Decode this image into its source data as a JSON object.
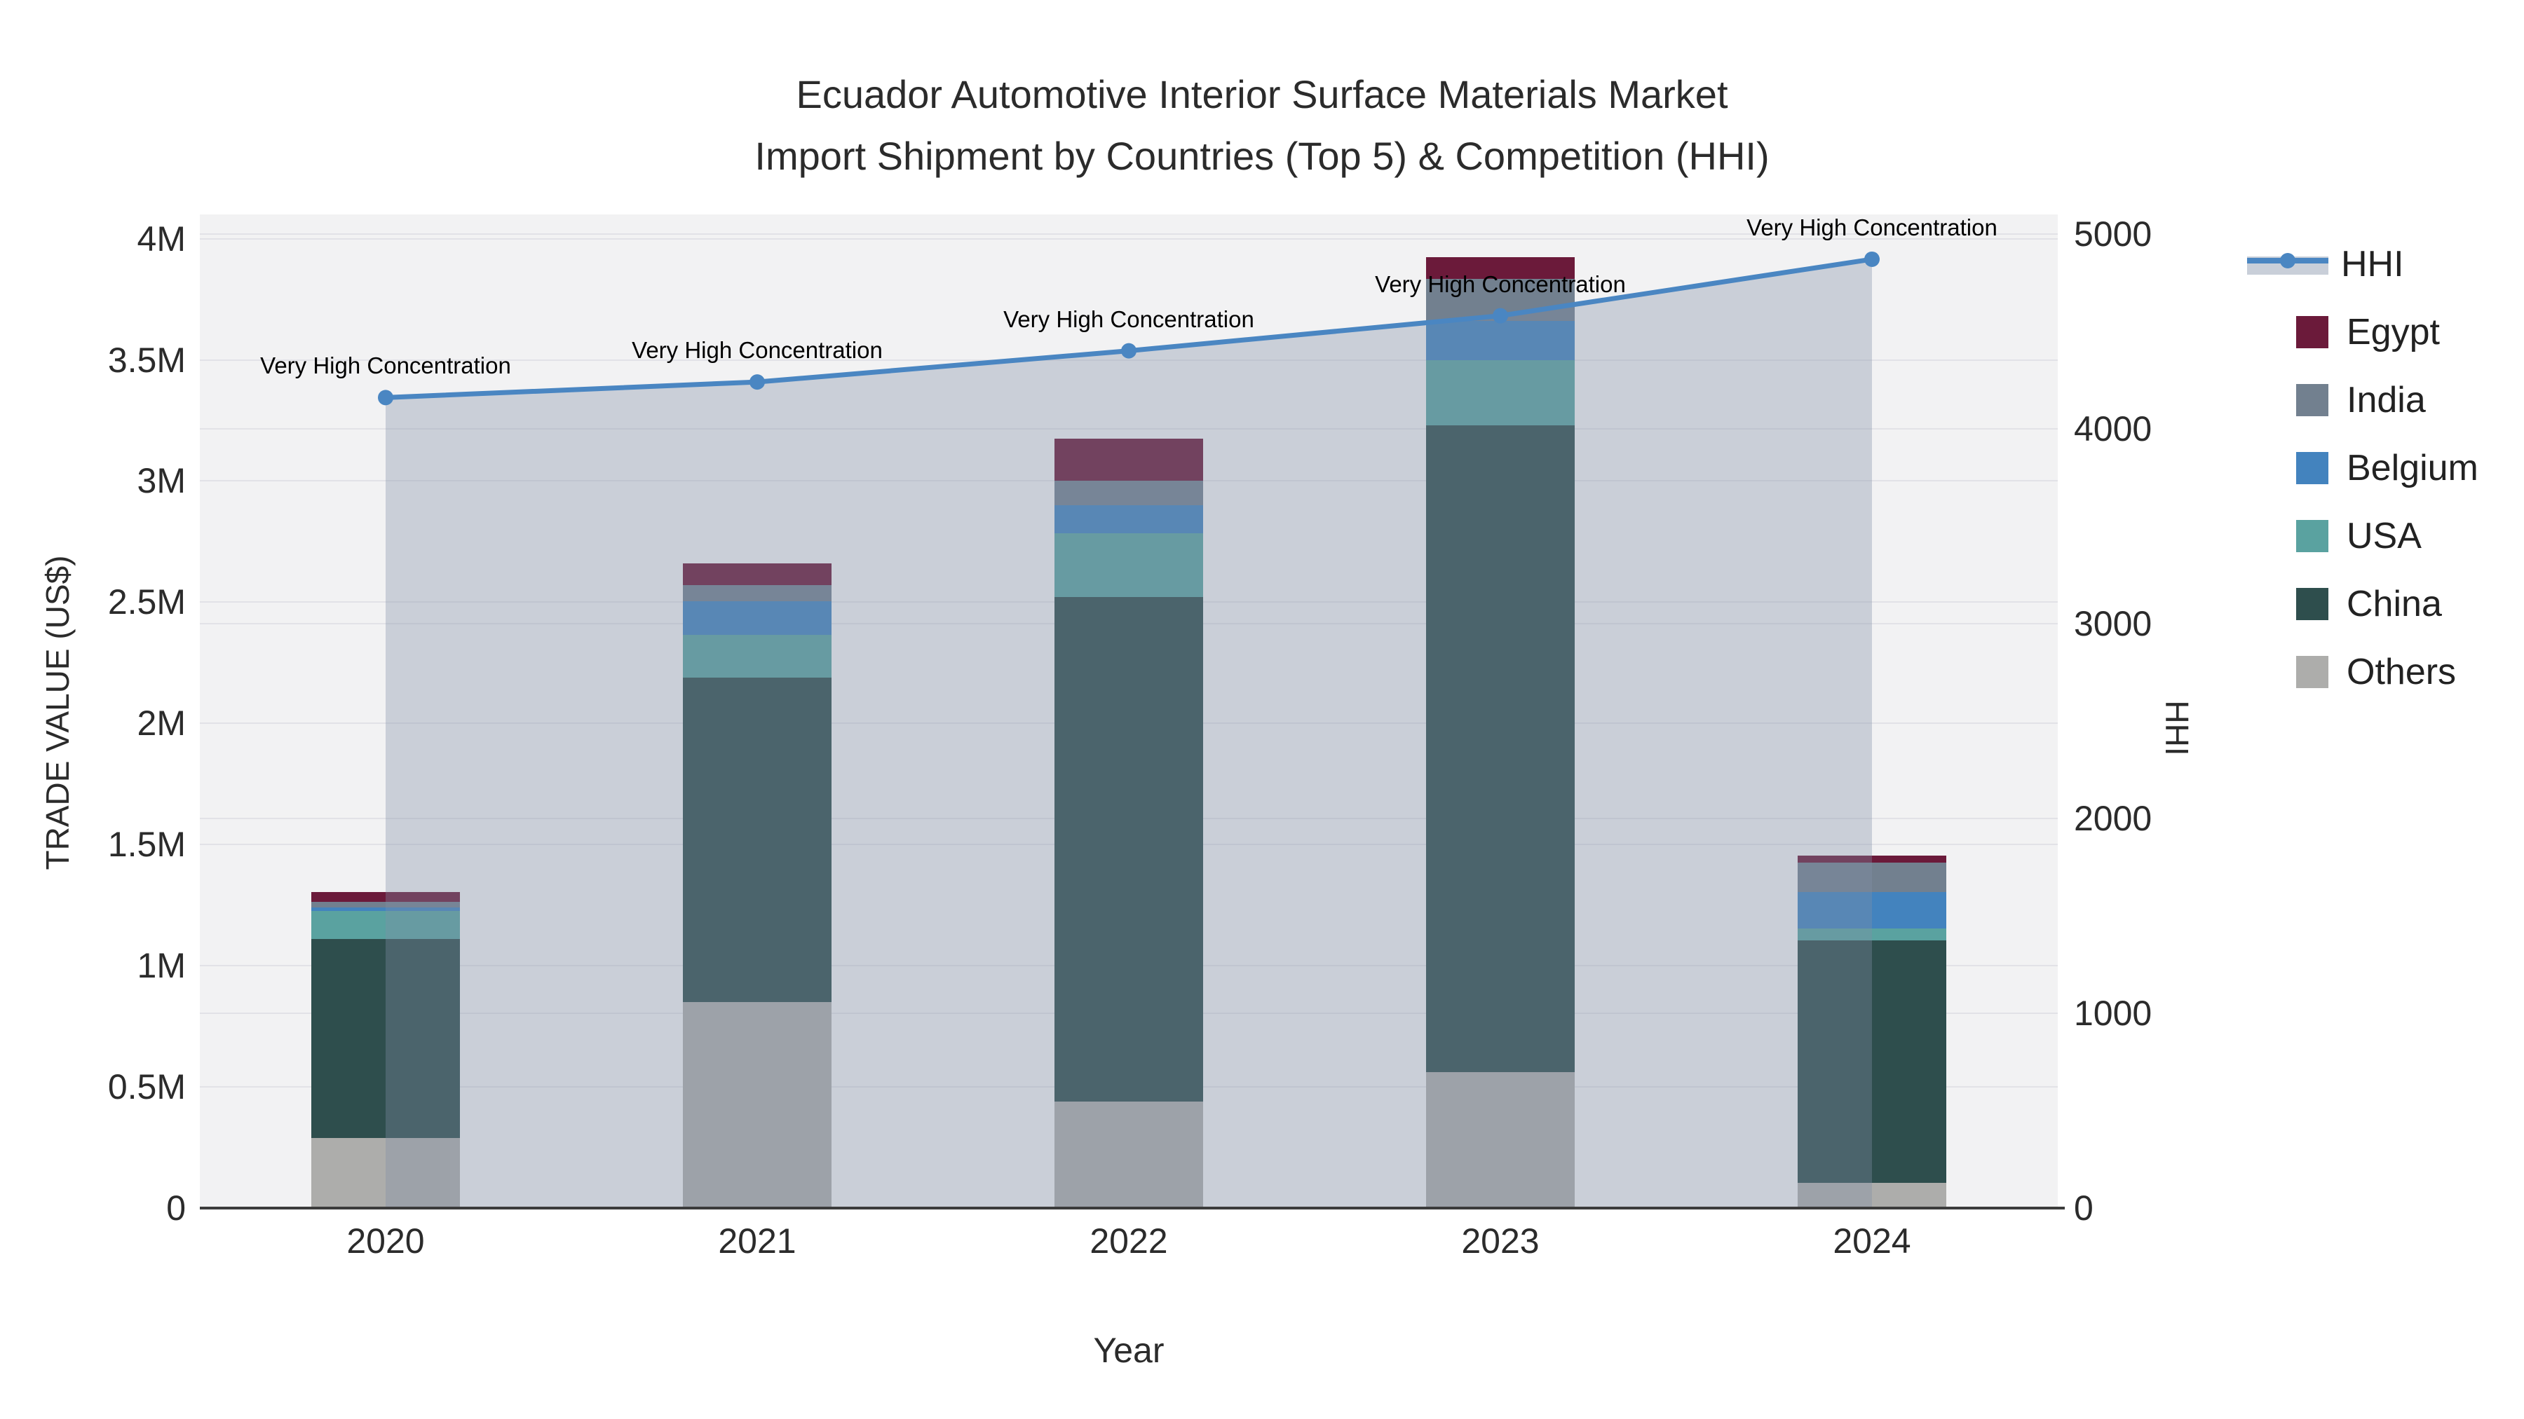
{
  "title_line1": "Ecuador Automotive Interior Surface Materials Market",
  "title_line2": "Import Shipment by Countries (Top 5) & Competition (HHI)",
  "axes": {
    "y_left_title": "TRADE VALUE (US$)",
    "y_right_title": "HHI",
    "x_title": "Year",
    "y_left_ticks": [
      "0",
      "0.5M",
      "1M",
      "1.5M",
      "2M",
      "2.5M",
      "3M",
      "3.5M",
      "4M"
    ],
    "y_right_ticks": [
      "0",
      "1000",
      "2000",
      "3000",
      "4000",
      "5000"
    ]
  },
  "legend": {
    "items": [
      {
        "label": "HHI",
        "type": "line",
        "color": "#4a86c2"
      },
      {
        "label": "Egypt",
        "type": "swatch",
        "color": "#6b1a3a"
      },
      {
        "label": "India",
        "type": "swatch",
        "color": "#72808f"
      },
      {
        "label": "Belgium",
        "type": "swatch",
        "color": "#4383be"
      },
      {
        "label": "USA",
        "type": "swatch",
        "color": "#5aa2a0"
      },
      {
        "label": "China",
        "type": "swatch",
        "color": "#2e4e4d"
      },
      {
        "label": "Others",
        "type": "swatch",
        "color": "#adadab"
      }
    ]
  },
  "chart_data": {
    "type": "bar",
    "subtype": "stacked-bars-with-line",
    "title": "Ecuador Automotive Interior Surface Materials Market Import Shipment by Countries (Top 5) & Competition (HHI)",
    "xlabel": "Year",
    "ylabel_left": "TRADE VALUE (US$)",
    "ylabel_right": "HHI",
    "categories": [
      "2020",
      "2021",
      "2022",
      "2023",
      "2024"
    ],
    "series": [
      {
        "name": "Others",
        "color": "#adadab",
        "values": [
          290000,
          850000,
          440000,
          560000,
          105000
        ]
      },
      {
        "name": "China",
        "color": "#2e4e4d",
        "values": [
          820000,
          1340000,
          2080000,
          2670000,
          1000000
        ]
      },
      {
        "name": "USA",
        "color": "#5aa2a0",
        "values": [
          115000,
          175000,
          265000,
          270000,
          50000
        ]
      },
      {
        "name": "Belgium",
        "color": "#4383be",
        "values": [
          15000,
          140000,
          115000,
          160000,
          150000
        ]
      },
      {
        "name": "India",
        "color": "#72808f",
        "values": [
          25000,
          65000,
          100000,
          175000,
          120000
        ]
      },
      {
        "name": "Egypt",
        "color": "#6b1a3a",
        "values": [
          40000,
          90000,
          175000,
          90000,
          30000
        ]
      }
    ],
    "line_series": {
      "name": "HHI",
      "color": "#4a86c2",
      "fill_color": "rgba(128,142,166,0.35)",
      "values": [
        4160,
        4240,
        4400,
        4580,
        4870
      ],
      "axis": "right"
    },
    "bar_totals": [
      1305000,
      2660000,
      3175000,
      3925000,
      1455000
    ],
    "annotations": [
      "Very High Concentration",
      "Very High Concentration",
      "Very High Concentration",
      "Very High Concentration",
      "Very High Concentration"
    ],
    "ylim_left": [
      0,
      4100000
    ],
    "ylim_right": [
      0,
      5100
    ],
    "left_tick_values": [
      0,
      500000,
      1000000,
      1500000,
      2000000,
      2500000,
      3000000,
      3500000,
      4000000
    ],
    "right_tick_values": [
      0,
      1000,
      2000,
      3000,
      4000,
      5000
    ],
    "grid": true,
    "legend_position": "right"
  }
}
